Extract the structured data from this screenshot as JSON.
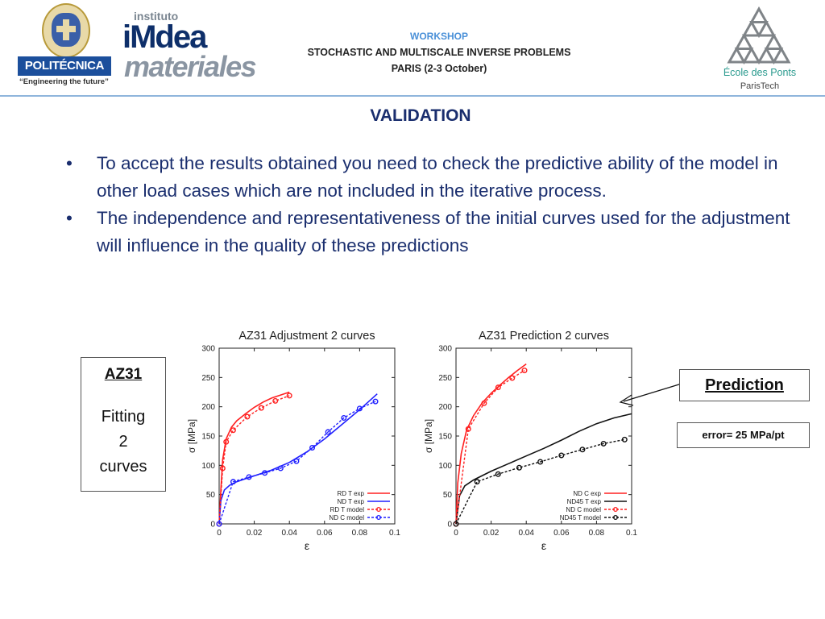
{
  "header": {
    "workshop_label": "WORKSHOP",
    "workshop_title": "STOCHASTIC AND MULTISCALE INVERSE PROBLEMS",
    "workshop_place": "PARIS (2-3 October)",
    "accent_color": "#4a90d8"
  },
  "logos": {
    "upm": {
      "name": "POLITÉCNICA",
      "slogan": "“Engineering the future”"
    },
    "imdea": {
      "line1": "instituto",
      "line2": "iMdea",
      "line3": "materiales"
    },
    "ponts": {
      "name": "École des Ponts",
      "tech": "ParisTech"
    }
  },
  "slide": {
    "title": "VALIDATION",
    "bullets": [
      "To accept the results obtained you need to check the predictive ability of the model in other load cases which are not included in the iterative process.",
      "The independence and representativeness of the initial curves used for the adjustment will influence in the quality of these predictions"
    ],
    "bullet_glyph": "•"
  },
  "az_box": {
    "name": "AZ31",
    "line1": "Fitting",
    "line2": "2",
    "line3": "curves"
  },
  "prediction_label": "Prediction",
  "error_label": "error= 25 MPa/pt",
  "chart_data": [
    {
      "type": "line",
      "title": "AZ31 Adjustment 2 curves",
      "xlabel": "ε",
      "ylabel": "σ [MPa]",
      "xlim": [
        0,
        0.1
      ],
      "ylim": [
        0,
        300
      ],
      "xticks": [
        "0",
        "0.02",
        "0.04",
        "0.06",
        "0.08",
        "0.1"
      ],
      "yticks": [
        "0",
        "50",
        "100",
        "150",
        "200",
        "250",
        "300"
      ],
      "legend_position": "bottom-right",
      "series": [
        {
          "name": "RD T exp",
          "color": "#ff2020",
          "style": "solid",
          "marker": false,
          "x": [
            0,
            0.001,
            0.002,
            0.004,
            0.007,
            0.01,
            0.015,
            0.02,
            0.025,
            0.03,
            0.035,
            0.04
          ],
          "y": [
            0,
            60,
            110,
            145,
            165,
            176,
            188,
            199,
            208,
            215,
            220,
            225
          ]
        },
        {
          "name": "ND T exp",
          "color": "#2020ff",
          "style": "solid",
          "marker": false,
          "x": [
            0,
            0.001,
            0.003,
            0.006,
            0.01,
            0.015,
            0.02,
            0.03,
            0.04,
            0.05,
            0.06,
            0.07,
            0.08,
            0.09
          ],
          "y": [
            0,
            40,
            58,
            66,
            72,
            77,
            82,
            92,
            105,
            123,
            145,
            170,
            195,
            222
          ]
        },
        {
          "name": "RD T model",
          "color": "#ff2020",
          "style": "dashed",
          "marker": true,
          "x": [
            0,
            0.002,
            0.004,
            0.008,
            0.016,
            0.024,
            0.032,
            0.04
          ],
          "y": [
            0,
            95,
            140,
            160,
            183,
            198,
            210,
            219
          ]
        },
        {
          "name": "ND C model",
          "color": "#2020ff",
          "style": "dashed",
          "marker": true,
          "x": [
            0,
            0.008,
            0.017,
            0.026,
            0.035,
            0.044,
            0.053,
            0.062,
            0.071,
            0.08,
            0.089
          ],
          "y": [
            0,
            72,
            80,
            87,
            95,
            107,
            130,
            157,
            181,
            197,
            209
          ]
        }
      ]
    },
    {
      "type": "line",
      "title": "AZ31 Prediction 2 curves",
      "xlabel": "ε",
      "ylabel": "σ [MPa]",
      "xlim": [
        0,
        0.1
      ],
      "ylim": [
        0,
        300
      ],
      "xticks": [
        "0",
        "0.02",
        "0.04",
        "0.06",
        "0.08",
        "0.1"
      ],
      "yticks": [
        "0",
        "50",
        "100",
        "150",
        "200",
        "250",
        "300"
      ],
      "legend_position": "bottom-right",
      "series": [
        {
          "name": "ND C exp",
          "color": "#ff2020",
          "style": "solid",
          "marker": false,
          "x": [
            0,
            0.001,
            0.003,
            0.006,
            0.01,
            0.015,
            0.02,
            0.025,
            0.03,
            0.035,
            0.04
          ],
          "y": [
            0,
            70,
            120,
            160,
            185,
            207,
            223,
            237,
            250,
            262,
            273
          ]
        },
        {
          "name": "ND45 T exp",
          "color": "#111111",
          "style": "solid",
          "marker": false,
          "x": [
            0,
            0.002,
            0.005,
            0.01,
            0.02,
            0.03,
            0.04,
            0.05,
            0.06,
            0.07,
            0.08,
            0.09,
            0.1
          ],
          "y": [
            0,
            48,
            65,
            75,
            90,
            103,
            116,
            129,
            143,
            158,
            171,
            181,
            188
          ]
        },
        {
          "name": "ND C model",
          "color": "#ff2020",
          "style": "dashed",
          "marker": true,
          "x": [
            0,
            0.007,
            0.016,
            0.024,
            0.032,
            0.039
          ],
          "y": [
            0,
            162,
            206,
            233,
            249,
            262
          ]
        },
        {
          "name": "ND45 T model",
          "color": "#111111",
          "style": "dashed",
          "marker": true,
          "x": [
            0,
            0.012,
            0.024,
            0.036,
            0.048,
            0.06,
            0.072,
            0.084,
            0.096
          ],
          "y": [
            0,
            72,
            85,
            96,
            106,
            117,
            127,
            137,
            144
          ]
        }
      ]
    }
  ]
}
